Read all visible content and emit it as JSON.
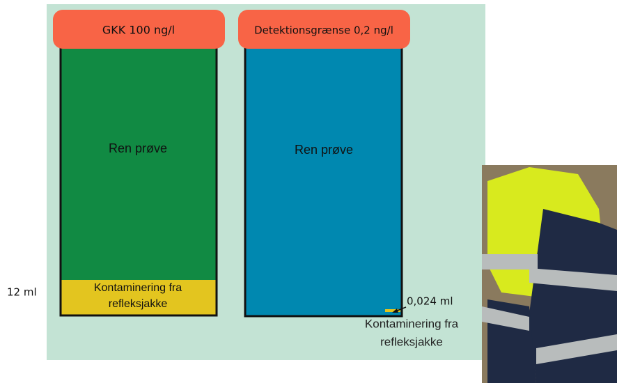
{
  "left": {
    "header": "GKK 100 ng/l",
    "body": "Ren prøve",
    "contamination": [
      "Kontaminering fra",
      "refleksjakke"
    ],
    "volume": "12 ml"
  },
  "right": {
    "header": "Detektionsgrænse 0,2 ng/l",
    "body": "Ren prøve",
    "volume": "0,024 ml",
    "contamination": [
      "Kontaminering fra",
      "refleksjakke"
    ]
  }
}
